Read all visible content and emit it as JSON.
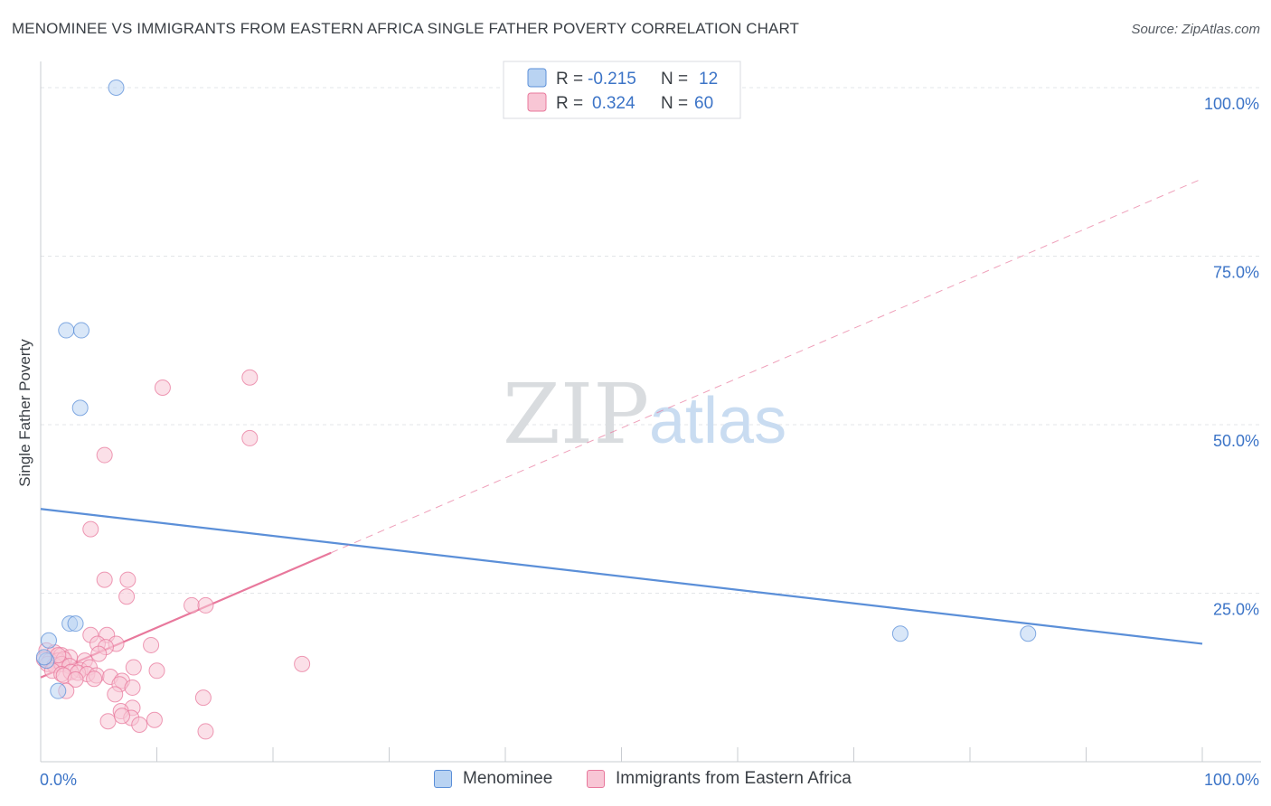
{
  "title": "MENOMINEE VS IMMIGRANTS FROM EASTERN AFRICA SINGLE FATHER POVERTY CORRELATION CHART",
  "source": "Source: ZipAtlas.com",
  "watermark": {
    "zip": "ZIP",
    "atlas": "atlas"
  },
  "chart_data": {
    "type": "scatter",
    "xlabel": "",
    "ylabel": "Single Father Poverty",
    "xlim": [
      0,
      100
    ],
    "ylim": [
      0,
      100
    ],
    "x_tick_labels": [
      "0.0%",
      "100.0%"
    ],
    "y_tick_labels": [
      "25.0%",
      "50.0%",
      "75.0%",
      "100.0%"
    ],
    "y_ticks": [
      25,
      50,
      75,
      100
    ],
    "legend_stats": [
      {
        "r_label": "R =",
        "r_value": "-0.215",
        "n_label": "N =",
        "n_value": "12"
      },
      {
        "r_label": "R =",
        "r_value": "0.324",
        "n_label": "N =",
        "n_value": "60"
      }
    ],
    "series": [
      {
        "name": "Menominee",
        "color": "#5b8fd8",
        "fill": "#b9d3f2",
        "trend": {
          "x": [
            0,
            100
          ],
          "y": [
            37.5,
            17.5
          ],
          "dashed_from": null
        },
        "points": [
          [
            6.5,
            100
          ],
          [
            2.2,
            64
          ],
          [
            3.5,
            64
          ],
          [
            3.4,
            52.5
          ],
          [
            2.5,
            20.5
          ],
          [
            3,
            20.5
          ],
          [
            0.7,
            18
          ],
          [
            0.5,
            15
          ],
          [
            1.5,
            10.5
          ],
          [
            74,
            19
          ],
          [
            85,
            19
          ],
          [
            0.3,
            15.5
          ]
        ]
      },
      {
        "name": "Immigrants from Eastern Africa",
        "color": "#e8789c",
        "fill": "#f8c6d5",
        "trend": {
          "x": [
            0,
            25
          ],
          "y": [
            12.5,
            31
          ],
          "dashed_to": 100,
          "dashed_y": 86.5
        },
        "points": [
          [
            10.5,
            55.5
          ],
          [
            18,
            57
          ],
          [
            18,
            48
          ],
          [
            5.5,
            45.5
          ],
          [
            4.3,
            34.5
          ],
          [
            5.5,
            27
          ],
          [
            7.5,
            27
          ],
          [
            7.4,
            24.5
          ],
          [
            13,
            23.2
          ],
          [
            14.2,
            23.2
          ],
          [
            5.7,
            18.8
          ],
          [
            4.3,
            18.8
          ],
          [
            6.5,
            17.5
          ],
          [
            4.9,
            17.5
          ],
          [
            9.5,
            17.3
          ],
          [
            5.6,
            17
          ],
          [
            0.5,
            16.5
          ],
          [
            1.2,
            16.2
          ],
          [
            1.8,
            15.8
          ],
          [
            2.5,
            15.5
          ],
          [
            5,
            16
          ],
          [
            0.3,
            15.2
          ],
          [
            0.8,
            15
          ],
          [
            1.5,
            15
          ],
          [
            2,
            15.2
          ],
          [
            3.8,
            15
          ],
          [
            0.6,
            14.5
          ],
          [
            1.2,
            14.3
          ],
          [
            1.8,
            14.5
          ],
          [
            2.5,
            14.2
          ],
          [
            3.4,
            13.6
          ],
          [
            4.2,
            14
          ],
          [
            8,
            14
          ],
          [
            22.5,
            14.5
          ],
          [
            1,
            13.5
          ],
          [
            1.8,
            13
          ],
          [
            2.6,
            13.3
          ],
          [
            3.2,
            13.2
          ],
          [
            4,
            13
          ],
          [
            4.8,
            12.8
          ],
          [
            6,
            12.6
          ],
          [
            10,
            13.5
          ],
          [
            2,
            12.8
          ],
          [
            3,
            12.2
          ],
          [
            4.6,
            12.3
          ],
          [
            7,
            12
          ],
          [
            6.8,
            11.5
          ],
          [
            7.9,
            11
          ],
          [
            2.2,
            10.5
          ],
          [
            6.4,
            10
          ],
          [
            14,
            9.5
          ],
          [
            7.9,
            8
          ],
          [
            6.9,
            7.5
          ],
          [
            5.8,
            6
          ],
          [
            7.8,
            6.5
          ],
          [
            9.8,
            6.2
          ],
          [
            8.5,
            5.5
          ],
          [
            14.2,
            4.5
          ],
          [
            7,
            6.8
          ],
          [
            1.5,
            15.8
          ]
        ]
      }
    ]
  }
}
